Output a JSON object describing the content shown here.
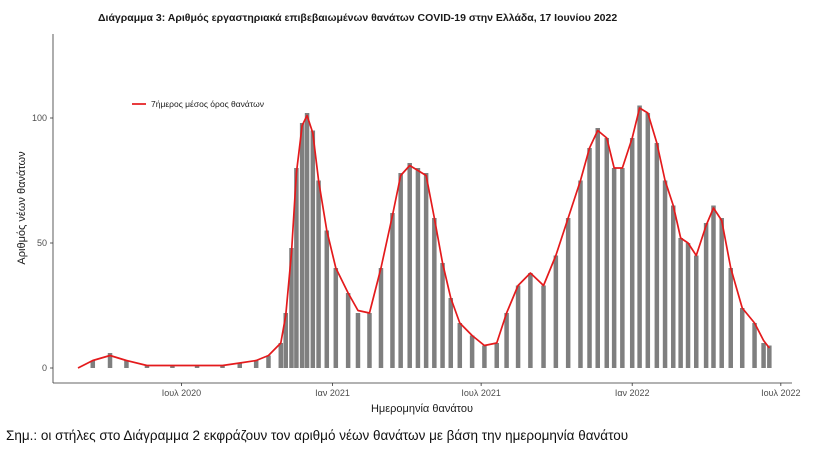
{
  "chart_data": {
    "type": "bar",
    "title": "Διάγραμμα 3: Αριθμός εργαστηριακά επιβεβαιωμένων θανάτων COVID-19 στην Ελλάδα, 17 Ιουνίου 2022",
    "xlabel": "Ημερομηνία θανάτου",
    "ylabel": "Αριθμός νέων θανάτων",
    "ylim": [
      0,
      130
    ],
    "yticks": [
      0,
      50,
      100
    ],
    "xlim": [
      "2020-02-26",
      "2022-06-30"
    ],
    "xticks": [
      {
        "date": "2020-07-01",
        "label": "Ιουλ 2020"
      },
      {
        "date": "2021-01-01",
        "label": "Ιαν 2021"
      },
      {
        "date": "2021-07-01",
        "label": "Ιουλ 2021"
      },
      {
        "date": "2022-01-01",
        "label": "Ιαν 2022"
      },
      {
        "date": "2022-07-01",
        "label": "Ιουλ 2022"
      }
    ],
    "grid": false,
    "legend_position": "top-left",
    "bar_color": "#7f7f7f",
    "line_color": "#e41a1c",
    "series": [
      {
        "kind": "bar",
        "description": "daily new deaths",
        "x": [
          "2020-02-26",
          "2020-03-15",
          "2020-04-05",
          "2020-04-25",
          "2020-05-20",
          "2020-06-20",
          "2020-07-20",
          "2020-08-20",
          "2020-09-10",
          "2020-09-30",
          "2020-10-15",
          "2020-10-30",
          "2020-11-05",
          "2020-11-12",
          "2020-11-18",
          "2020-11-25",
          "2020-12-01",
          "2020-12-08",
          "2020-12-15",
          "2020-12-25",
          "2021-01-05",
          "2021-01-20",
          "2021-02-01",
          "2021-02-15",
          "2021-03-01",
          "2021-03-15",
          "2021-03-25",
          "2021-04-05",
          "2021-04-15",
          "2021-04-25",
          "2021-05-05",
          "2021-05-15",
          "2021-05-25",
          "2021-06-05",
          "2021-06-20",
          "2021-07-05",
          "2021-07-20",
          "2021-08-01",
          "2021-08-15",
          "2021-08-30",
          "2021-09-15",
          "2021-09-30",
          "2021-10-15",
          "2021-10-30",
          "2021-11-10",
          "2021-11-20",
          "2021-12-01",
          "2021-12-10",
          "2021-12-20",
          "2022-01-01",
          "2022-01-10",
          "2022-01-20",
          "2022-01-31",
          "2022-02-10",
          "2022-02-20",
          "2022-03-01",
          "2022-03-10",
          "2022-03-20",
          "2022-04-01",
          "2022-04-10",
          "2022-04-20",
          "2022-05-01",
          "2022-05-15",
          "2022-05-30",
          "2022-06-10",
          "2022-06-17"
        ],
        "y": [
          0,
          3,
          6,
          3,
          1,
          1,
          1,
          1,
          2,
          3,
          5,
          10,
          22,
          48,
          80,
          98,
          102,
          95,
          75,
          55,
          40,
          30,
          22,
          22,
          40,
          62,
          78,
          82,
          80,
          78,
          60,
          42,
          28,
          18,
          13,
          9,
          10,
          22,
          33,
          38,
          33,
          45,
          60,
          75,
          88,
          96,
          92,
          80,
          80,
          92,
          105,
          102,
          90,
          75,
          65,
          52,
          50,
          45,
          58,
          65,
          60,
          40,
          24,
          18,
          10,
          9
        ]
      },
      {
        "kind": "line",
        "name": "7ήμερος μέσος όρος θανάτων",
        "x": [
          "2020-02-26",
          "2020-03-15",
          "2020-04-05",
          "2020-04-25",
          "2020-05-20",
          "2020-06-20",
          "2020-07-20",
          "2020-08-20",
          "2020-09-10",
          "2020-09-30",
          "2020-10-15",
          "2020-10-30",
          "2020-11-05",
          "2020-11-12",
          "2020-11-18",
          "2020-11-25",
          "2020-12-01",
          "2020-12-08",
          "2020-12-15",
          "2020-12-25",
          "2021-01-05",
          "2021-01-20",
          "2021-02-01",
          "2021-02-15",
          "2021-03-01",
          "2021-03-15",
          "2021-03-25",
          "2021-04-05",
          "2021-04-15",
          "2021-04-25",
          "2021-05-05",
          "2021-05-15",
          "2021-05-25",
          "2021-06-05",
          "2021-06-20",
          "2021-07-05",
          "2021-07-20",
          "2021-08-01",
          "2021-08-15",
          "2021-08-30",
          "2021-09-15",
          "2021-09-30",
          "2021-10-15",
          "2021-10-30",
          "2021-11-10",
          "2021-11-20",
          "2021-12-01",
          "2021-12-10",
          "2021-12-20",
          "2022-01-01",
          "2022-01-10",
          "2022-01-20",
          "2022-01-31",
          "2022-02-10",
          "2022-02-20",
          "2022-03-01",
          "2022-03-10",
          "2022-03-20",
          "2022-04-01",
          "2022-04-10",
          "2022-04-20",
          "2022-05-01",
          "2022-05-15",
          "2022-05-30",
          "2022-06-10",
          "2022-06-17"
        ],
        "y": [
          0,
          3,
          5,
          3,
          1,
          1,
          1,
          1,
          2,
          3,
          5,
          10,
          21,
          46,
          78,
          97,
          101,
          94,
          75,
          55,
          40,
          30,
          23,
          22,
          40,
          61,
          77,
          81,
          79,
          77,
          60,
          42,
          28,
          18,
          13,
          9,
          10,
          22,
          33,
          38,
          33,
          45,
          60,
          75,
          88,
          95,
          92,
          80,
          80,
          92,
          104,
          102,
          90,
          75,
          65,
          52,
          50,
          45,
          57,
          64,
          59,
          40,
          24,
          18,
          11,
          8
        ]
      }
    ]
  },
  "note": "Σημ.: οι στήλες στο Διάγραμμα 2 εκφράζουν τον αριθμό νέων θανάτων με βάση την ημερομηνία θανάτου"
}
